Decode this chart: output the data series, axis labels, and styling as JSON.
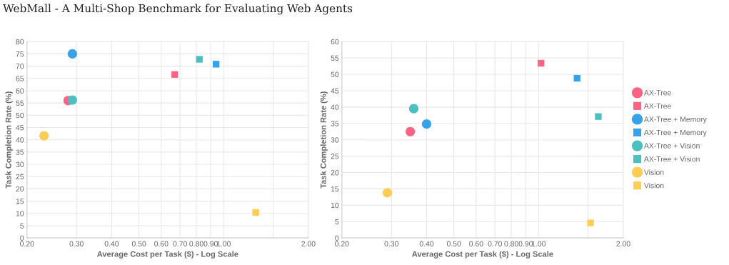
{
  "chart_data": [
    {
      "type": "scatter",
      "title": "WebMall - A Multi-Shop Benchmark for Evaluating Web Agents",
      "xlabel": "Average Cost per Task ($) - Log Scale",
      "ylabel": "Task Completion Rate (%)",
      "log": "x",
      "grid": true,
      "legend": false,
      "xlim": [
        0.2,
        2.0
      ],
      "xticks": [
        {
          "value": 0.2,
          "label": "0.20"
        },
        {
          "value": 0.3,
          "label": "0.30"
        },
        {
          "value": 0.4,
          "label": "0.40"
        },
        {
          "value": 0.5,
          "label": "0.50"
        },
        {
          "value": 0.6,
          "label": "0.60"
        },
        {
          "value": 0.7,
          "label": "0.70"
        },
        {
          "value": 0.8,
          "label": "0.80"
        },
        {
          "value": 0.9,
          "label": "0.90"
        },
        {
          "value": 1.0,
          "label": "1.00"
        },
        {
          "value": 1.5,
          "label": null
        },
        {
          "value": 2.0,
          "label": "2.00"
        }
      ],
      "ylim": [
        0,
        80
      ],
      "yticks": [
        0,
        5,
        10,
        15,
        20,
        25,
        30,
        35,
        40,
        45,
        50,
        55,
        60,
        65,
        70,
        75,
        80
      ],
      "series": [
        {
          "color": "#ff6384",
          "marker": "circle",
          "x": [
            0.28
          ],
          "values": [
            56
          ]
        },
        {
          "color": "#ff6384",
          "marker": "square",
          "x": [
            0.67
          ],
          "values": [
            66.6
          ]
        },
        {
          "color": "#36a2eb",
          "marker": "circle",
          "x": [
            0.29
          ],
          "values": [
            75
          ]
        },
        {
          "color": "#36a2eb",
          "marker": "square",
          "x": [
            0.94
          ],
          "values": [
            70.8
          ]
        },
        {
          "color": "#4bc0c0",
          "marker": "circle",
          "x": [
            0.29
          ],
          "values": [
            56.2
          ]
        },
        {
          "color": "#4bc0c0",
          "marker": "square",
          "x": [
            0.82
          ],
          "values": [
            72.8
          ]
        },
        {
          "color": "#ffcd56",
          "marker": "circle",
          "x": [
            0.23
          ],
          "values": [
            41.6
          ]
        },
        {
          "color": "#ffcd56",
          "marker": "square",
          "x": [
            1.3
          ],
          "values": [
            10.4
          ]
        }
      ]
    },
    {
      "type": "scatter",
      "xlabel": "Average Cost per Task ($) - Log Scale",
      "ylabel": "Task Completion Rate (%)",
      "log": "x",
      "grid": true,
      "legend": "right",
      "xlim": [
        0.2,
        2.0
      ],
      "xticks": [
        {
          "value": 0.2,
          "label": "0.20"
        },
        {
          "value": 0.3,
          "label": "0.30"
        },
        {
          "value": 0.4,
          "label": "0.40"
        },
        {
          "value": 0.5,
          "label": "0.50"
        },
        {
          "value": 0.6,
          "label": "0.60"
        },
        {
          "value": 0.7,
          "label": "0.70"
        },
        {
          "value": 0.8,
          "label": "0.80"
        },
        {
          "value": 0.9,
          "label": "0.90"
        },
        {
          "value": 1.0,
          "label": "1.00"
        },
        {
          "value": 1.5,
          "label": null
        },
        {
          "value": 2.0,
          "label": "2.00"
        }
      ],
      "ylim": [
        0,
        60
      ],
      "yticks": [
        0,
        5,
        10,
        15,
        20,
        25,
        30,
        35,
        40,
        45,
        50,
        55,
        60
      ],
      "series": [
        {
          "name": "AX-Tree",
          "color": "#ff6384",
          "marker": "circle",
          "x": [
            0.35
          ],
          "values": [
            32.5
          ]
        },
        {
          "name": "AX-Tree",
          "color": "#ff6384",
          "marker": "square",
          "x": [
            1.02
          ],
          "values": [
            53.4
          ]
        },
        {
          "name": "AX-Tree + Memory",
          "color": "#36a2eb",
          "marker": "circle",
          "x": [
            0.4
          ],
          "values": [
            34.8
          ]
        },
        {
          "name": "AX-Tree + Memory",
          "color": "#36a2eb",
          "marker": "square",
          "x": [
            1.37
          ],
          "values": [
            48.8
          ]
        },
        {
          "name": "AX-Tree + Vision",
          "color": "#4bc0c0",
          "marker": "circle",
          "x": [
            0.36
          ],
          "values": [
            39.5
          ]
        },
        {
          "name": "AX-Tree + Vision",
          "color": "#4bc0c0",
          "marker": "square",
          "x": [
            1.63
          ],
          "values": [
            37.1
          ]
        },
        {
          "name": "Vision",
          "color": "#ffcd56",
          "marker": "circle",
          "x": [
            0.29
          ],
          "values": [
            13.8
          ]
        },
        {
          "name": "Vision",
          "color": "#ffcd56",
          "marker": "square",
          "x": [
            1.53
          ],
          "values": [
            4.6
          ]
        }
      ]
    }
  ]
}
